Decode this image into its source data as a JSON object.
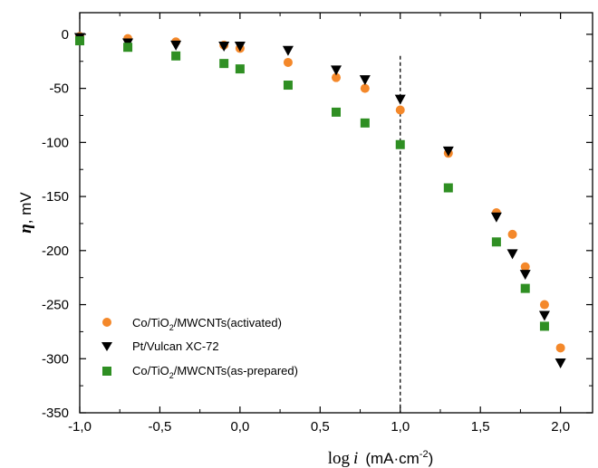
{
  "chart_data": {
    "type": "scatter",
    "title": "",
    "xlabel_parts": {
      "log": "log",
      "i": "i",
      "unit": "(mA·cm",
      "exp": "-2",
      "close": ")"
    },
    "ylabel_parts": {
      "eta": "η",
      "unit": ", mV"
    },
    "xlim": [
      -1.0,
      2.2
    ],
    "ylim": [
      -350,
      20
    ],
    "xticks": [
      -1.0,
      -0.5,
      0.0,
      0.5,
      1.0,
      1.5,
      2.0
    ],
    "xtick_labels": [
      "-1,0",
      "-0,5",
      "0,0",
      "0,5",
      "1,0",
      "1,5",
      "2,0"
    ],
    "yticks": [
      0,
      -50,
      -100,
      -150,
      -200,
      -250,
      -300,
      -350
    ],
    "ytick_labels": [
      "0",
      "-50",
      "-100",
      "-150",
      "-200",
      "-250",
      "-300",
      "-350"
    ],
    "grid": false,
    "legend_position": "bottom-left",
    "reference_line": {
      "x": 1.0,
      "style": "dashed"
    },
    "series": [
      {
        "name_parts": [
          "Co/TiO",
          "2",
          "/MWCNTs(activated)"
        ],
        "marker": "circle",
        "color": "#F4882A",
        "x": [
          -1.0,
          -0.7,
          -0.4,
          -0.1,
          0.0,
          0.3,
          0.6,
          0.78,
          1.0,
          1.3,
          1.6,
          1.7,
          1.78,
          1.9,
          2.0
        ],
        "y": [
          -2,
          -4,
          -7,
          -10,
          -13,
          -26,
          -40,
          -50,
          -70,
          -110,
          -165,
          -185,
          -215,
          -250,
          -290
        ]
      },
      {
        "name_parts": [
          "Pt/Vulcan XC-72",
          "",
          ""
        ],
        "marker": "triangle-down",
        "color": "#000000",
        "x": [
          -1.0,
          -0.7,
          -0.4,
          -0.1,
          0.0,
          0.3,
          0.6,
          0.78,
          1.0,
          1.3,
          1.6,
          1.7,
          1.78,
          1.9,
          2.0
        ],
        "y": [
          -3,
          -8,
          -10,
          -11,
          -11,
          -15,
          -33,
          -42,
          -60,
          -108,
          -169,
          -203,
          -222,
          -260,
          -304
        ]
      },
      {
        "name_parts": [
          "Co/TiO",
          "2",
          "/MWCNTs(as-prepared)"
        ],
        "marker": "square",
        "color": "#2F8F23",
        "x": [
          -1.0,
          -0.7,
          -0.4,
          -0.1,
          0.0,
          0.3,
          0.6,
          0.78,
          1.0,
          1.3,
          1.6,
          1.78,
          1.9
        ],
        "y": [
          -6,
          -12,
          -20,
          -27,
          -32,
          -47,
          -72,
          -82,
          -102,
          -142,
          -192,
          -235,
          -270
        ]
      }
    ]
  }
}
